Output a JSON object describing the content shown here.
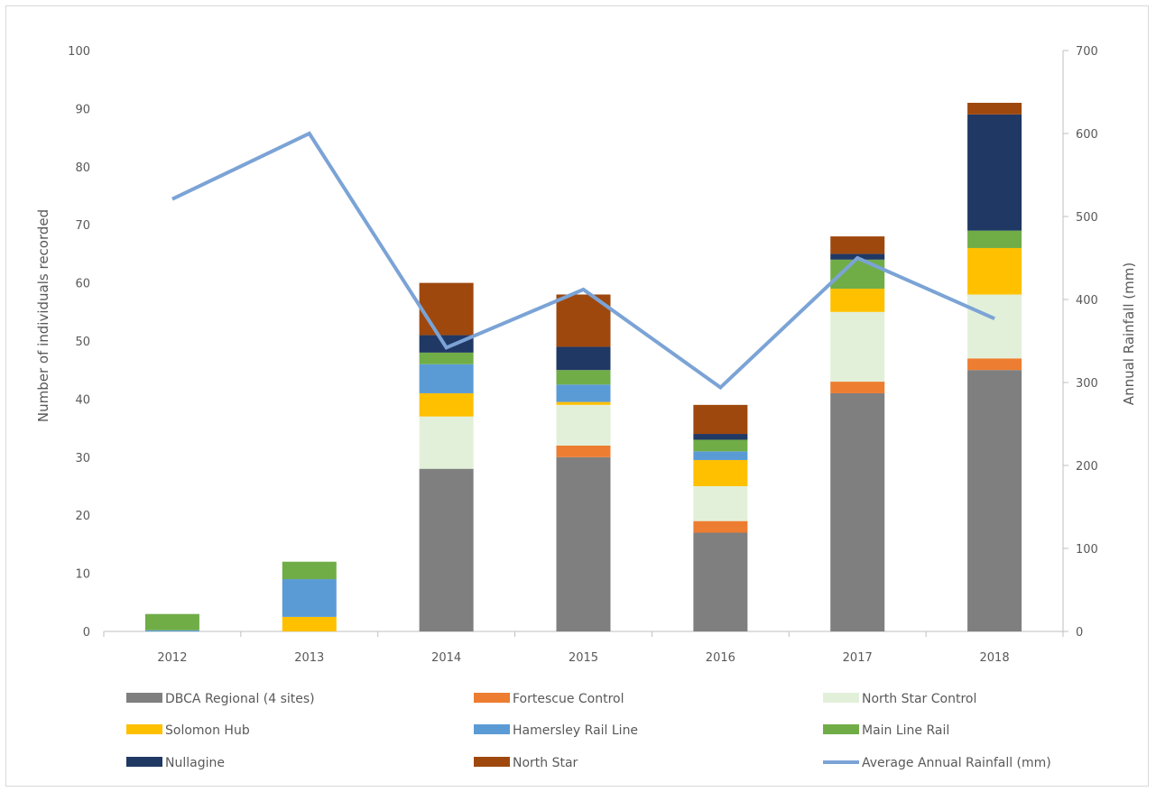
{
  "chart_data": {
    "type": "bar",
    "stacked": true,
    "title": "",
    "categories": [
      "2012",
      "2013",
      "2014",
      "2015",
      "2016",
      "2017",
      "2018"
    ],
    "ylabel": "Number of individuals recorded",
    "y2label": "Annual Rainfall (mm)",
    "ylim": [
      0,
      100
    ],
    "y2lim": [
      0,
      700
    ],
    "yticks": [
      "0",
      "10",
      "20",
      "30",
      "40",
      "50",
      "60",
      "70",
      "80",
      "90",
      "100"
    ],
    "y2ticks": [
      "0",
      "100",
      "200",
      "300",
      "400",
      "500",
      "600",
      "700"
    ],
    "grid": false,
    "legend_position": "bottom",
    "series": [
      {
        "name": "DBCA Regional (4 sites)",
        "color": "#7f7f7f",
        "values": [
          0,
          0,
          28,
          30,
          17,
          41,
          45
        ]
      },
      {
        "name": "Fortescue Control",
        "color": "#ed7d31",
        "values": [
          0,
          0,
          0,
          2,
          2,
          2,
          2
        ]
      },
      {
        "name": "North Star Control",
        "color": "#e2f0d9",
        "values": [
          0,
          0,
          9,
          7,
          6,
          12,
          11
        ]
      },
      {
        "name": "Solomon Hub",
        "color": "#ffc000",
        "values": [
          0,
          2.5,
          4,
          0.5,
          4.5,
          4,
          8
        ]
      },
      {
        "name": "Hamersley Rail Line",
        "color": "#5b9bd5",
        "values": [
          0.2,
          6.5,
          5,
          3,
          1.5,
          0,
          0
        ]
      },
      {
        "name": "Main Line Rail",
        "color": "#70ad47",
        "values": [
          2.8,
          3,
          2,
          2.5,
          2,
          5,
          3
        ]
      },
      {
        "name": "Nullagine",
        "color": "#203864",
        "values": [
          0,
          0,
          3,
          4,
          1,
          1,
          20
        ]
      },
      {
        "name": "North Star",
        "color": "#9e480e",
        "values": [
          0,
          0,
          9,
          9,
          5,
          3,
          2
        ]
      }
    ],
    "line_series": {
      "name": "Average Annual Rainfall (mm)",
      "color": "#7ba3d6",
      "axis": "right",
      "values": [
        521,
        600,
        342,
        412,
        294,
        450,
        377
      ]
    }
  }
}
